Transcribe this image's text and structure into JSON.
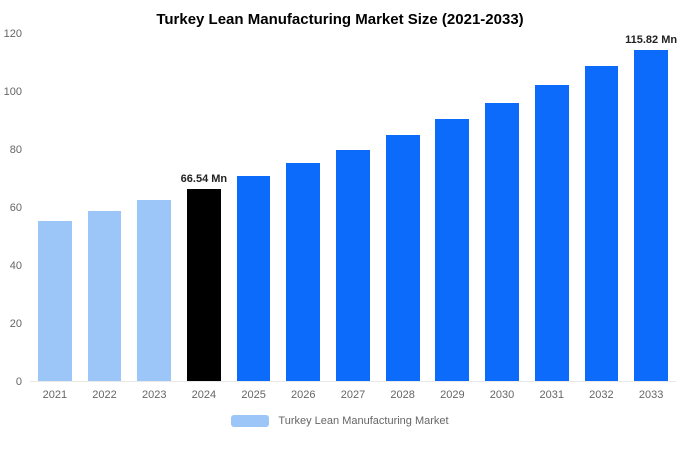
{
  "title": "Turkey Lean Manufacturing Market Size (2021-2033)",
  "legend": {
    "label": "Turkey Lean Manufacturing Market",
    "swatch_color": "#9dc6f8"
  },
  "colors": {
    "historical_bar": "#9dc6f8",
    "base_year_bar": "#000000",
    "forecast_bar": "#0d6bfb",
    "axis_text": "#666666",
    "title_text": "#000000"
  },
  "chart_data": {
    "type": "bar",
    "title": "Turkey Lean Manufacturing Market Size (2021-2033)",
    "categories": [
      "2021",
      "2022",
      "2023",
      "2024",
      "2025",
      "2026",
      "2027",
      "2028",
      "2029",
      "2030",
      "2031",
      "2032",
      "2033"
    ],
    "values": [
      55.32,
      58.83,
      62.57,
      66.54,
      70.77,
      75.26,
      80.04,
      85.12,
      90.53,
      96.28,
      102.39,
      108.89,
      115.82
    ],
    "unit": "Mn",
    "bar_colors": [
      "#9dc6f8",
      "#9dc6f8",
      "#9dc6f8",
      "#000000",
      "#0d6bfb",
      "#0d6bfb",
      "#0d6bfb",
      "#0d6bfb",
      "#0d6bfb",
      "#0d6bfb",
      "#0d6bfb",
      "#0d6bfb",
      "#0d6bfb"
    ],
    "annotations": [
      {
        "index": 3,
        "text": "66.54 Mn"
      },
      {
        "index": 12,
        "text": "115.82 Mn"
      }
    ],
    "xlabel": "",
    "ylabel": "",
    "ylim": [
      0,
      120
    ],
    "yticks": [
      0,
      20,
      40,
      60,
      80,
      100,
      120
    ],
    "grid": false,
    "legend_position": "bottom"
  }
}
